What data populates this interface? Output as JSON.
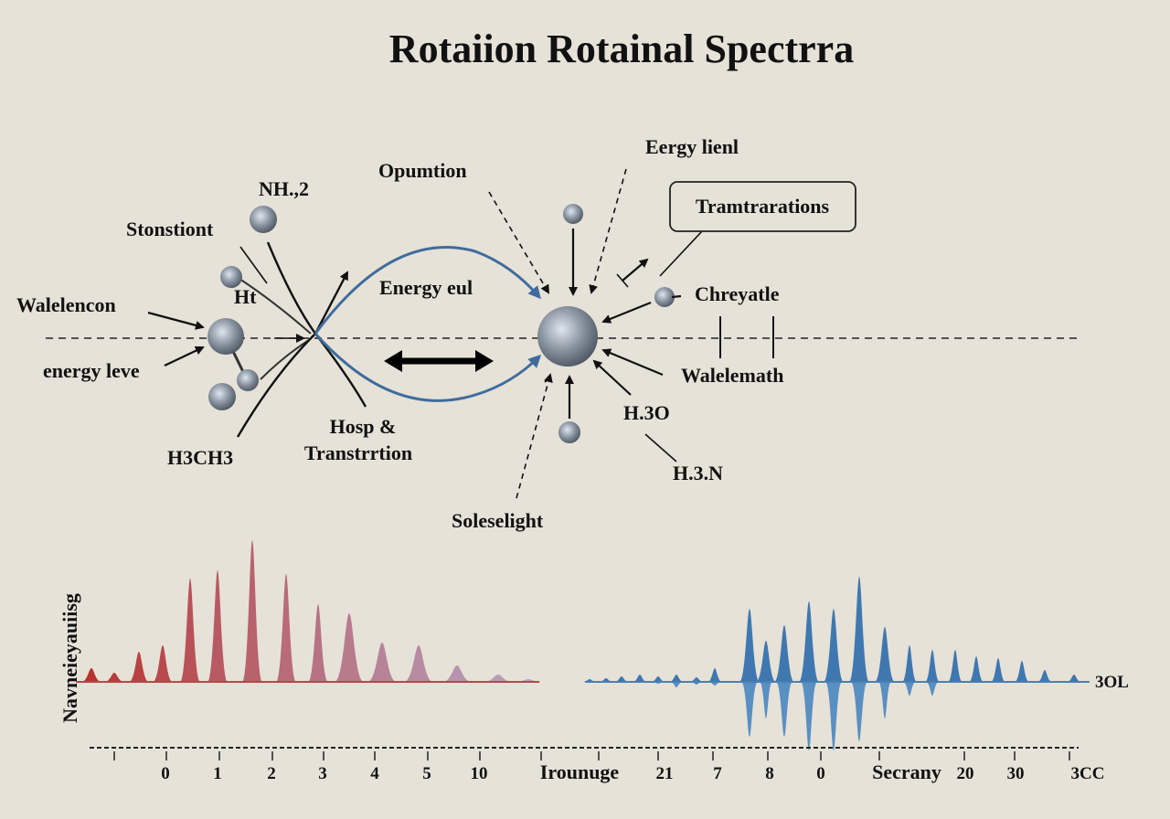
{
  "title": "Rotaiion Rotainal Spectrra",
  "labels": {
    "nh2": "NH.,2",
    "stonstiont": "Stonstiont",
    "ht": "Ht",
    "walelencon": "Walelencon",
    "energy_leve": "energy leve",
    "h3ch3": "H3CH3",
    "hosp": "Hosp &",
    "transtrrtion": "Transtrrtion",
    "opumtion": "Opumtion",
    "energy_eul": "Energy eul",
    "energy_lienl": "Eergy lienl",
    "tramtrarations": "Tramtrarations",
    "chreyatle": "Chreyatle",
    "walelemath": "Walelemath",
    "h3o": "H.3O",
    "h3n": "H.3.N",
    "soleselight": "Soleselight"
  },
  "spectrum": {
    "ylabel": "Navneieyauiisg",
    "right_label": "3OL",
    "colors": {
      "red_start": "#b8322e",
      "red_end": "#b7a3c2",
      "blue": "#3f78b0"
    },
    "red_intensities": [
      15,
      10,
      33,
      40,
      113,
      122,
      155,
      118,
      85,
      75,
      43,
      40,
      18,
      8,
      3
    ],
    "blue_up": [
      3,
      4,
      6,
      8,
      6,
      8,
      5,
      15,
      80,
      45,
      62,
      88,
      80,
      115,
      60,
      40,
      35,
      35,
      28,
      26,
      23,
      13,
      8
    ],
    "blue_down": [
      0,
      0,
      0,
      0,
      2,
      6,
      3,
      4,
      60,
      40,
      60,
      75,
      75,
      65,
      40,
      15,
      15,
      0,
      0,
      0,
      0,
      0,
      0
    ],
    "tick_labels": [
      "0",
      "1",
      "2",
      "3",
      "4",
      "5",
      "10",
      "Irounuge",
      "21",
      "7",
      "8",
      "0",
      "Secrany",
      "20",
      "30",
      "3CC"
    ]
  }
}
